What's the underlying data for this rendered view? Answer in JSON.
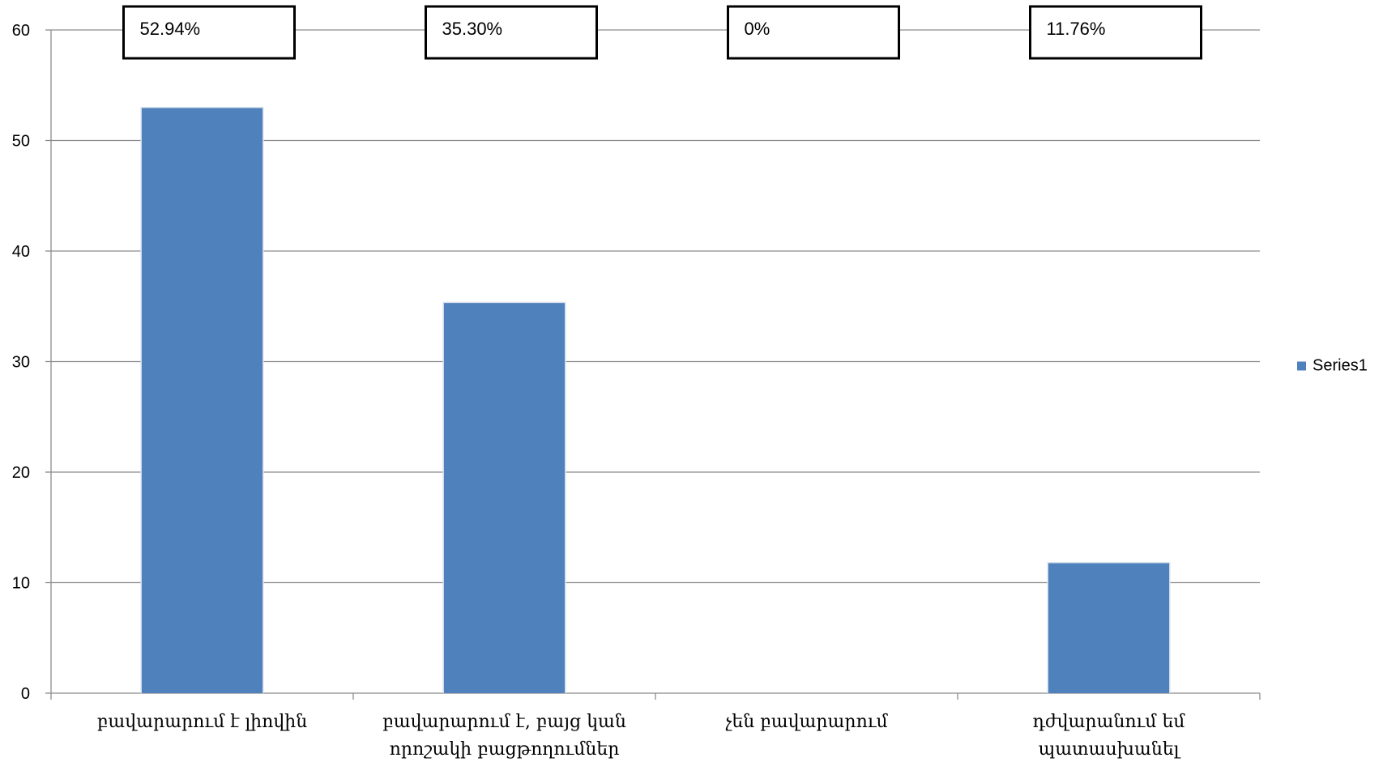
{
  "chart_data": {
    "type": "bar",
    "categories": [
      [
        "բավարարում է լիովին"
      ],
      [
        "բավարարում է, բայց կան",
        "որոշակի բացթողումներ"
      ],
      [
        "չեն բավարարում"
      ],
      [
        "դժվարանում եմ",
        "պատասխանել"
      ]
    ],
    "series": [
      {
        "name": "Series1",
        "values": [
          52.94,
          35.3,
          0,
          11.76
        ],
        "data_labels": [
          "52.94%",
          "35.30%",
          "0%",
          "11.76%"
        ],
        "color": "#4F81BD"
      }
    ],
    "ylim": [
      0,
      60
    ],
    "yticks": [
      "0",
      "10",
      "20",
      "30",
      "40",
      "50",
      "60"
    ],
    "grid": true,
    "legend": "right"
  }
}
